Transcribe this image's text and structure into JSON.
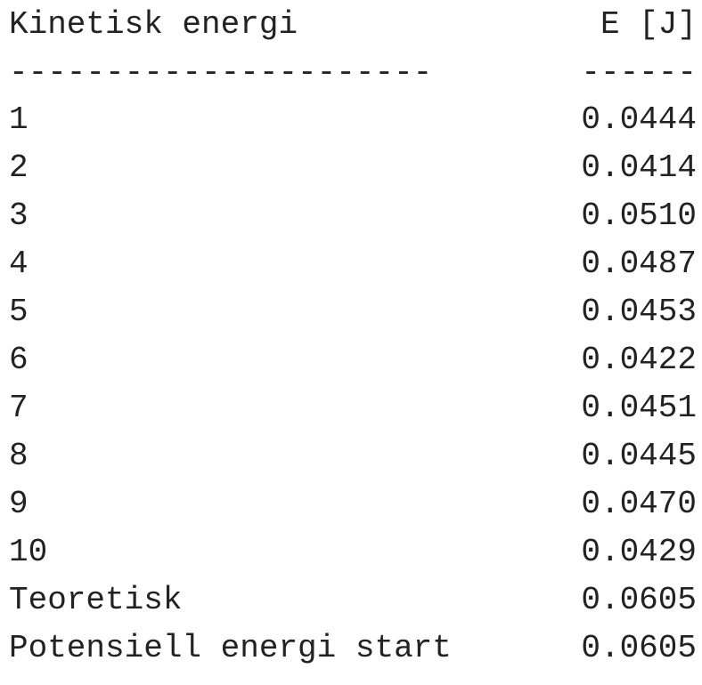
{
  "table": {
    "header": {
      "label": "Kinetisk energi",
      "unit": "E [J]"
    },
    "separator": {
      "left": "----------------------",
      "right": "------"
    },
    "rows": [
      {
        "label": "1",
        "value": "0.0444"
      },
      {
        "label": "2",
        "value": "0.0414"
      },
      {
        "label": "3",
        "value": "0.0510"
      },
      {
        "label": "4",
        "value": "0.0487"
      },
      {
        "label": "5",
        "value": "0.0453"
      },
      {
        "label": "6",
        "value": "0.0422"
      },
      {
        "label": "7",
        "value": "0.0451"
      },
      {
        "label": "8",
        "value": "0.0445"
      },
      {
        "label": "9",
        "value": "0.0470"
      },
      {
        "label": "10",
        "value": "0.0429"
      },
      {
        "label": "Teoretisk",
        "value": "0.0605"
      },
      {
        "label": "Potensiell energi start",
        "value": "0.0605"
      }
    ]
  }
}
